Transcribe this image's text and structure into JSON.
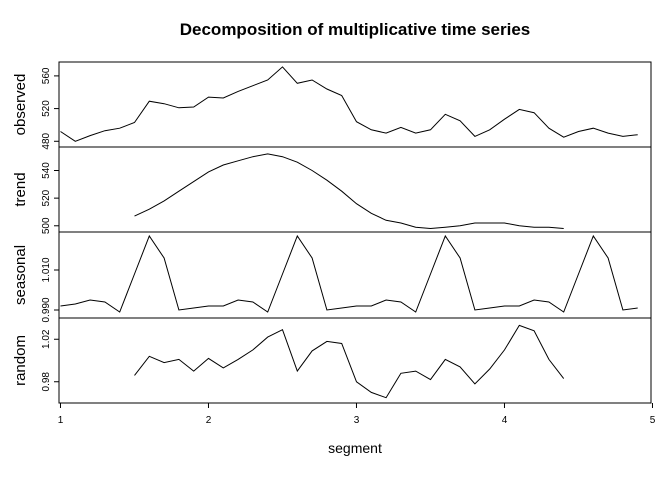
{
  "chart_data": {
    "type": "line",
    "title": "Decomposition of multiplicative time series",
    "xlabel": "segment",
    "xlim": [
      0.99,
      4.99
    ],
    "x_ticks": [
      1,
      2,
      3,
      4,
      5
    ],
    "x_tick_labels": [
      "1",
      "2",
      "3",
      "4",
      "5"
    ],
    "panels": [
      {
        "name": "observed",
        "ylim": [
          473,
          577
        ],
        "y_ticks": [
          480,
          520,
          560
        ],
        "y_tick_labels": [
          "480",
          "520",
          "560"
        ],
        "x": [
          1.0,
          1.1,
          1.2,
          1.3,
          1.4,
          1.5,
          1.6,
          1.7,
          1.8,
          1.9,
          2.0,
          2.1,
          2.2,
          2.3,
          2.4,
          2.5,
          2.6,
          2.7,
          2.8,
          2.9,
          3.0,
          3.1,
          3.2,
          3.3,
          3.4,
          3.5,
          3.6,
          3.7,
          3.8,
          3.9,
          4.0,
          4.1,
          4.2,
          4.3,
          4.4,
          4.5,
          4.6,
          4.7,
          4.8,
          4.9
        ],
        "values": [
          492,
          480,
          487,
          493,
          496,
          503,
          529,
          526,
          521,
          522,
          534,
          533,
          541,
          548,
          555,
          571,
          551,
          555,
          544,
          536,
          504,
          494,
          490,
          497,
          490,
          494,
          513,
          505,
          486,
          494,
          507,
          519,
          515,
          496,
          485,
          492,
          496,
          490,
          486,
          488
        ]
      },
      {
        "name": "trend",
        "ylim": [
          495.5,
          557
        ],
        "y_ticks": [
          500,
          520,
          540
        ],
        "y_tick_labels": [
          "500",
          "520",
          "540"
        ],
        "x": [
          1.5,
          1.6,
          1.7,
          1.8,
          1.9,
          2.0,
          2.1,
          2.2,
          2.3,
          2.4,
          2.5,
          2.6,
          2.7,
          2.8,
          2.9,
          3.0,
          3.1,
          3.2,
          3.3,
          3.4,
          3.5,
          3.6,
          3.7,
          3.8,
          3.9,
          4.0,
          4.1,
          4.2,
          4.3,
          4.4
        ],
        "values": [
          507,
          512,
          518,
          525,
          532,
          539,
          544,
          547,
          550,
          552,
          550,
          546,
          540,
          533,
          525,
          516,
          509,
          504,
          502,
          499,
          498,
          499,
          500,
          502,
          502,
          502,
          500,
          499,
          499,
          498
        ]
      },
      {
        "name": "seasonal",
        "ylim": [
          0.986,
          1.029
        ],
        "y_ticks": [
          0.99,
          1.01
        ],
        "y_tick_labels": [
          "0.990",
          "1.010"
        ],
        "x": [
          1.0,
          1.1,
          1.2,
          1.3,
          1.4,
          1.5,
          1.6,
          1.7,
          1.8,
          1.9,
          2.0,
          2.1,
          2.2,
          2.3,
          2.4,
          2.5,
          2.6,
          2.7,
          2.8,
          2.9,
          3.0,
          3.1,
          3.2,
          3.3,
          3.4,
          3.5,
          3.6,
          3.7,
          3.8,
          3.9,
          4.0,
          4.1,
          4.2,
          4.3,
          4.4,
          4.5,
          4.6,
          4.7,
          4.8,
          4.9
        ],
        "values": [
          0.992,
          0.993,
          0.995,
          0.994,
          0.989,
          1.008,
          1.027,
          1.016,
          0.99,
          0.991,
          0.992,
          0.992,
          0.995,
          0.994,
          0.989,
          1.008,
          1.027,
          1.016,
          0.99,
          0.991,
          0.992,
          0.992,
          0.995,
          0.994,
          0.989,
          1.008,
          1.027,
          1.016,
          0.99,
          0.991,
          0.992,
          0.992,
          0.995,
          0.994,
          0.989,
          1.008,
          1.027,
          1.016,
          0.99,
          0.991
        ]
      },
      {
        "name": "random",
        "ylim": [
          0.96,
          1.04
        ],
        "y_ticks": [
          0.98,
          1.02
        ],
        "y_tick_labels": [
          "0.98",
          "1.02"
        ],
        "x": [
          1.5,
          1.6,
          1.7,
          1.8,
          1.9,
          2.0,
          2.1,
          2.2,
          2.3,
          2.4,
          2.5,
          2.6,
          2.7,
          2.8,
          2.9,
          3.0,
          3.1,
          3.2,
          3.3,
          3.4,
          3.5,
          3.6,
          3.7,
          3.8,
          3.9,
          4.0,
          4.1,
          4.2,
          4.3,
          4.4
        ],
        "values": [
          0.986,
          1.004,
          0.998,
          1.001,
          0.99,
          1.002,
          0.993,
          1.001,
          1.01,
          1.022,
          1.029,
          0.99,
          1.009,
          1.018,
          1.016,
          0.98,
          0.97,
          0.965,
          0.988,
          0.99,
          0.982,
          1.001,
          0.994,
          0.978,
          0.992,
          1.01,
          1.033,
          1.028,
          1.001,
          0.983
        ]
      }
    ]
  }
}
